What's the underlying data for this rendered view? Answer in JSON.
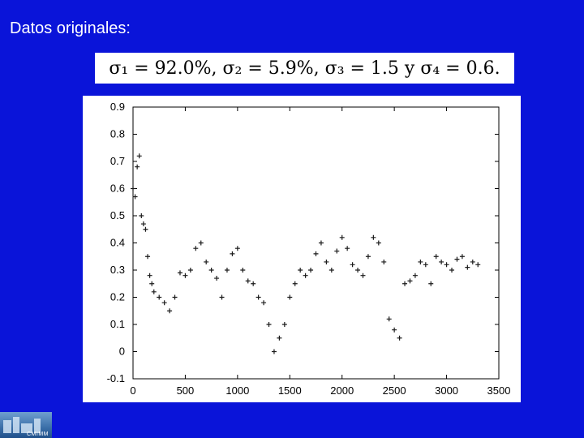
{
  "slide": {
    "title": "Datos originales:",
    "formula": "σ₁ = 92.0%, σ₂ = 5.9%, σ₃ = 1.5 y σ₄ = 0.6.",
    "logo_text": "CMIMM"
  },
  "colors": {
    "background": "#0a14d9",
    "panel": "#ffffff",
    "marker": "#1a1a1a"
  },
  "chart_data": {
    "type": "scatter",
    "marker": "plus",
    "title": "",
    "xlabel": "",
    "ylabel": "",
    "xlim": [
      0,
      3500
    ],
    "ylim": [
      -0.1,
      0.9
    ],
    "grid": false,
    "xticks": [
      "0",
      "500",
      "1000",
      "1500",
      "2000",
      "2500",
      "3000",
      "3500"
    ],
    "yticks": [
      "-0.1",
      "0",
      "0.1",
      "0.2",
      "0.3",
      "0.4",
      "0.5",
      "0.6",
      "0.7",
      "0.8",
      "0.9"
    ],
    "series": [
      {
        "x": [
          0,
          20,
          40,
          60,
          80,
          100,
          120,
          140,
          160,
          180,
          200,
          250,
          300,
          350,
          400,
          450,
          500,
          550,
          600,
          650,
          700,
          750,
          800,
          850,
          900,
          950,
          1000,
          1050,
          1100,
          1150,
          1200,
          1250,
          1300,
          1350,
          1400,
          1450,
          1500,
          1550,
          1600,
          1650,
          1700,
          1750,
          1800,
          1850,
          1900,
          1950,
          2000,
          2050,
          2100,
          2150,
          2200,
          2250,
          2300,
          2350,
          2400,
          2450,
          2500,
          2550,
          2600,
          2650,
          2700,
          2750,
          2800,
          2850,
          2900,
          2950,
          3000,
          3050,
          3100,
          3150,
          3200,
          3250,
          3300
        ],
        "y": [
          0.6,
          0.57,
          0.68,
          0.72,
          0.5,
          0.47,
          0.45,
          0.35,
          0.28,
          0.25,
          0.22,
          0.2,
          0.18,
          0.15,
          0.2,
          0.29,
          0.28,
          0.3,
          0.38,
          0.4,
          0.33,
          0.3,
          0.27,
          0.2,
          0.3,
          0.36,
          0.38,
          0.3,
          0.26,
          0.25,
          0.2,
          0.18,
          0.1,
          0.0,
          0.05,
          0.1,
          0.2,
          0.25,
          0.3,
          0.28,
          0.3,
          0.36,
          0.4,
          0.33,
          0.3,
          0.37,
          0.42,
          0.38,
          0.32,
          0.3,
          0.28,
          0.35,
          0.42,
          0.4,
          0.33,
          0.12,
          0.08,
          0.05,
          0.25,
          0.26,
          0.28,
          0.33,
          0.32,
          0.25,
          0.35,
          0.33,
          0.32,
          0.3,
          0.34,
          0.35,
          0.31,
          0.33,
          0.32
        ]
      }
    ]
  }
}
